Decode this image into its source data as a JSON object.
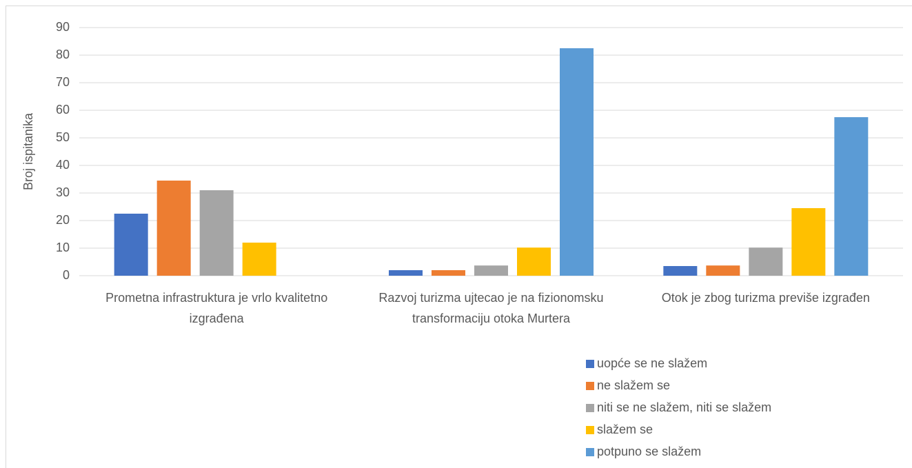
{
  "chart_data": {
    "type": "bar",
    "y_label": "Broj ispitanika",
    "categories": [
      "Prometna infrastruktura je vrlo kvalitetno izgrađena",
      "Razvoj turizma ujtecao je na fizionomsku transformaciju otoka Murtera",
      "Otok je zbog turizma previše izgrađen"
    ],
    "series": [
      {
        "name": "uopće se ne slažem",
        "color": "#4472c4",
        "values": [
          22.5,
          2,
          3.5
        ]
      },
      {
        "name": "ne slažem se",
        "color": "#ed7d31",
        "values": [
          34.5,
          2,
          3.7
        ]
      },
      {
        "name": "niti se ne slažem, niti se slažem",
        "color": "#a5a5a5",
        "values": [
          31,
          3.7,
          10.2
        ]
      },
      {
        "name": "slažem se",
        "color": "#ffc000",
        "values": [
          12,
          10.2,
          24.5
        ]
      },
      {
        "name": "potpuno se slažem",
        "color": "#5b9bd5",
        "values": [
          0,
          82.5,
          57.5
        ]
      }
    ],
    "ylim": [
      0,
      90
    ],
    "yticks": [
      0,
      10,
      20,
      30,
      40,
      50,
      60,
      70,
      80,
      90
    ],
    "grid": true,
    "legend": "bottom"
  }
}
